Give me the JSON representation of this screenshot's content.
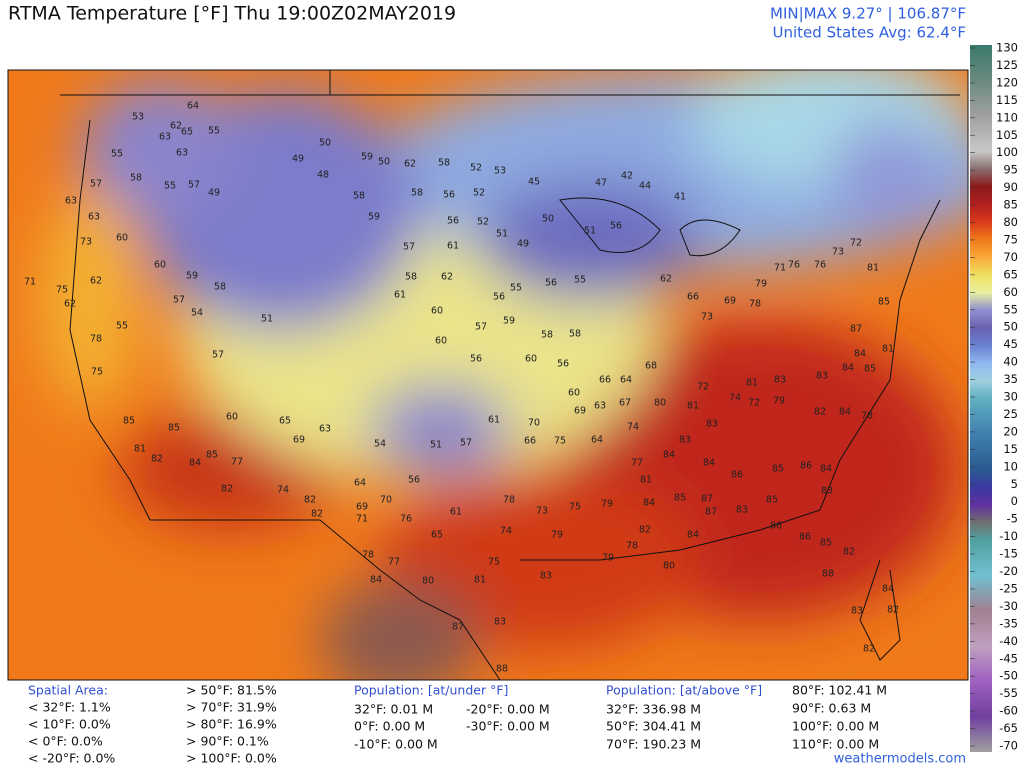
{
  "header": {
    "title": "RTMA Temperature [°F]  Thu 19:00Z02MAY2019",
    "minmax": "MIN|MAX 9.27° | 106.87°F",
    "average": "United States Avg: 62.4°F"
  },
  "colorbar": {
    "ticks": [
      130,
      125,
      120,
      115,
      110,
      105,
      100,
      95,
      90,
      85,
      80,
      75,
      70,
      65,
      60,
      55,
      50,
      45,
      40,
      35,
      30,
      25,
      20,
      15,
      10,
      5,
      0,
      -5,
      -10,
      -15,
      -20,
      -25,
      -30,
      -35,
      -40,
      -45,
      -50,
      -55,
      -60,
      -65,
      -70
    ]
  },
  "map_labels": [
    64,
    53,
    62,
    63,
    65,
    55,
    63,
    55,
    57,
    58,
    55,
    57,
    49,
    63,
    63,
    73,
    60,
    71,
    75,
    62,
    62,
    78,
    55,
    75,
    60,
    59,
    57,
    58,
    54,
    51,
    57,
    50,
    49,
    48,
    59,
    50,
    62,
    58,
    52,
    53,
    45,
    58,
    59,
    58,
    56,
    52,
    56,
    52,
    51,
    49,
    50,
    51,
    56,
    47,
    42,
    44,
    41,
    57,
    61,
    58,
    62,
    56,
    55,
    56,
    55,
    61,
    60,
    57,
    59,
    58,
    58,
    60,
    56,
    60,
    56,
    66,
    64,
    68,
    60,
    69,
    63,
    67,
    62,
    66,
    73,
    69,
    78,
    79,
    71,
    76,
    76,
    73,
    72,
    81,
    85,
    87,
    84,
    81,
    84,
    85,
    83,
    83,
    81,
    72,
    74,
    72,
    79,
    82,
    84,
    78,
    80,
    81,
    83,
    83,
    74,
    64,
    75,
    70,
    66,
    61,
    57,
    51,
    54,
    63,
    69,
    65,
    60,
    85,
    85,
    81,
    82,
    84,
    85,
    77,
    82,
    74,
    82,
    82,
    64,
    56,
    70,
    69,
    71,
    76,
    61,
    65,
    78,
    73,
    75,
    79,
    74,
    79,
    79,
    77,
    81,
    84,
    84,
    86,
    85,
    86,
    84,
    83,
    85,
    83,
    87,
    85,
    87,
    84,
    82,
    84,
    86,
    86,
    85,
    82,
    88,
    84,
    83,
    82,
    82,
    80,
    83,
    81,
    75,
    80,
    77,
    78,
    84,
    87,
    83,
    88,
    78
  ],
  "stats": {
    "spatial": {
      "title": "Spatial Area:",
      "below": [
        "< 32°F: 1.1%",
        "< 10°F: 0.0%",
        "< 0°F: 0.0%",
        "< -20°F: 0.0%"
      ],
      "above": [
        "> 50°F: 81.5%",
        "> 70°F: 31.9%",
        "> 80°F: 16.9%",
        "> 90°F: 0.1%",
        "> 100°F: 0.0%"
      ]
    },
    "pop_under": {
      "title": "Population: [at/under °F]",
      "col1": [
        "32°F: 0.01 M",
        "0°F: 0.00 M",
        "-10°F: 0.00 M"
      ],
      "col2": [
        "-20°F: 0.00 M",
        "-30°F: 0.00 M"
      ]
    },
    "pop_above": {
      "title": "Population: [at/above °F]",
      "col1": [
        "32°F: 336.98 M",
        "50°F: 304.41 M",
        "70°F: 190.23 M"
      ],
      "col2": [
        "80°F: 102.41 M",
        "90°F: 0.63 M",
        "100°F: 0.00 M",
        "110°F: 0.00 M"
      ]
    }
  },
  "footer": "weathermodels.com"
}
